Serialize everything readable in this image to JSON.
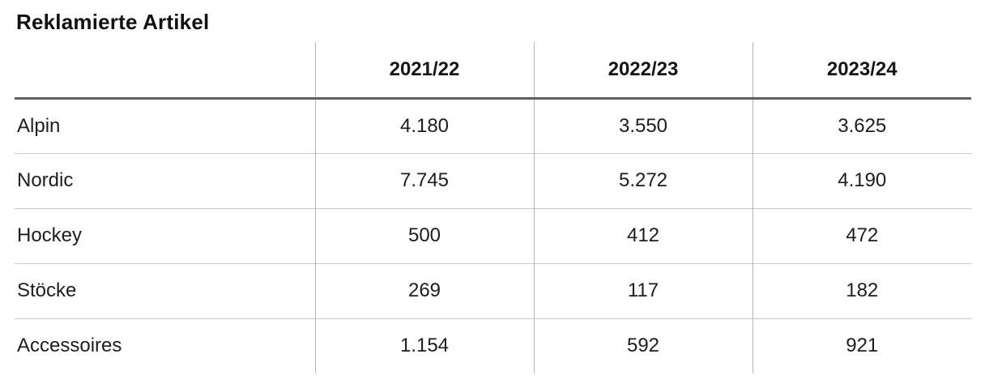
{
  "chart_data": {
    "type": "table",
    "title": "Reklamierte Artikel",
    "columns": [
      "2021/22",
      "2022/23",
      "2023/24"
    ],
    "rows": [
      {
        "label": "Alpin",
        "values": [
          "4.180",
          "3.550",
          "3.625"
        ]
      },
      {
        "label": "Nordic",
        "values": [
          "7.745",
          "5.272",
          "4.190"
        ]
      },
      {
        "label": "Hockey",
        "values": [
          "500",
          "412",
          "472"
        ]
      },
      {
        "label": "Stöcke",
        "values": [
          "269",
          "117",
          "182"
        ]
      },
      {
        "label": "Accessoires",
        "values": [
          "1.154",
          "592",
          "921"
        ]
      }
    ]
  },
  "colors": {
    "text": "#1a1a1a",
    "header_rule": "#5f5f5f",
    "row_separator": "#c9c9c9",
    "column_separator": "#b5b5b5",
    "background": "#ffffff"
  }
}
